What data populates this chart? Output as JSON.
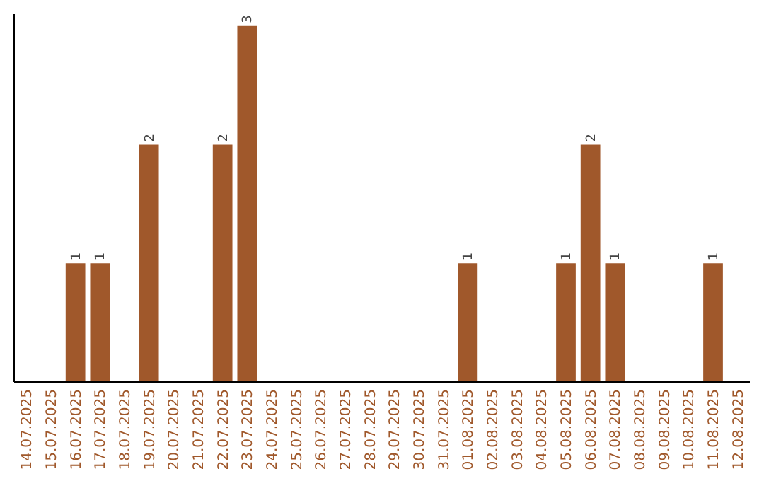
{
  "chart_data": {
    "type": "bar",
    "categories": [
      "14.07.2025",
      "15.07.2025",
      "16.07.2025",
      "17.07.2025",
      "18.07.2025",
      "19.07.2025",
      "20.07.2025",
      "21.07.2025",
      "22.07.2025",
      "23.07.2025",
      "24.07.2025",
      "25.07.2025",
      "26.07.2025",
      "27.07.2025",
      "28.07.2025",
      "29.07.2025",
      "30.07.2025",
      "31.07.2025",
      "01.08.2025",
      "02.08.2025",
      "03.08.2025",
      "04.08.2025",
      "05.08.2025",
      "06.08.2025",
      "07.08.2025",
      "08.08.2025",
      "09.08.2025",
      "10.08.2025",
      "11.08.2025",
      "12.08.2025"
    ],
    "values": [
      0,
      0,
      1,
      1,
      0,
      2,
      0,
      0,
      2,
      3,
      0,
      0,
      0,
      0,
      0,
      0,
      0,
      0,
      1,
      0,
      0,
      0,
      1,
      2,
      1,
      0,
      0,
      0,
      1,
      0
    ],
    "value_labels": [
      null,
      null,
      "1",
      "1",
      null,
      "2",
      null,
      null,
      "2",
      "3",
      null,
      null,
      null,
      null,
      null,
      null,
      null,
      null,
      "1",
      null,
      null,
      null,
      "1",
      "2",
      "1",
      null,
      null,
      null,
      "1",
      null
    ],
    "color": "#a0582b",
    "ylim": [
      0,
      3.1
    ],
    "tick_labels": "x"
  }
}
